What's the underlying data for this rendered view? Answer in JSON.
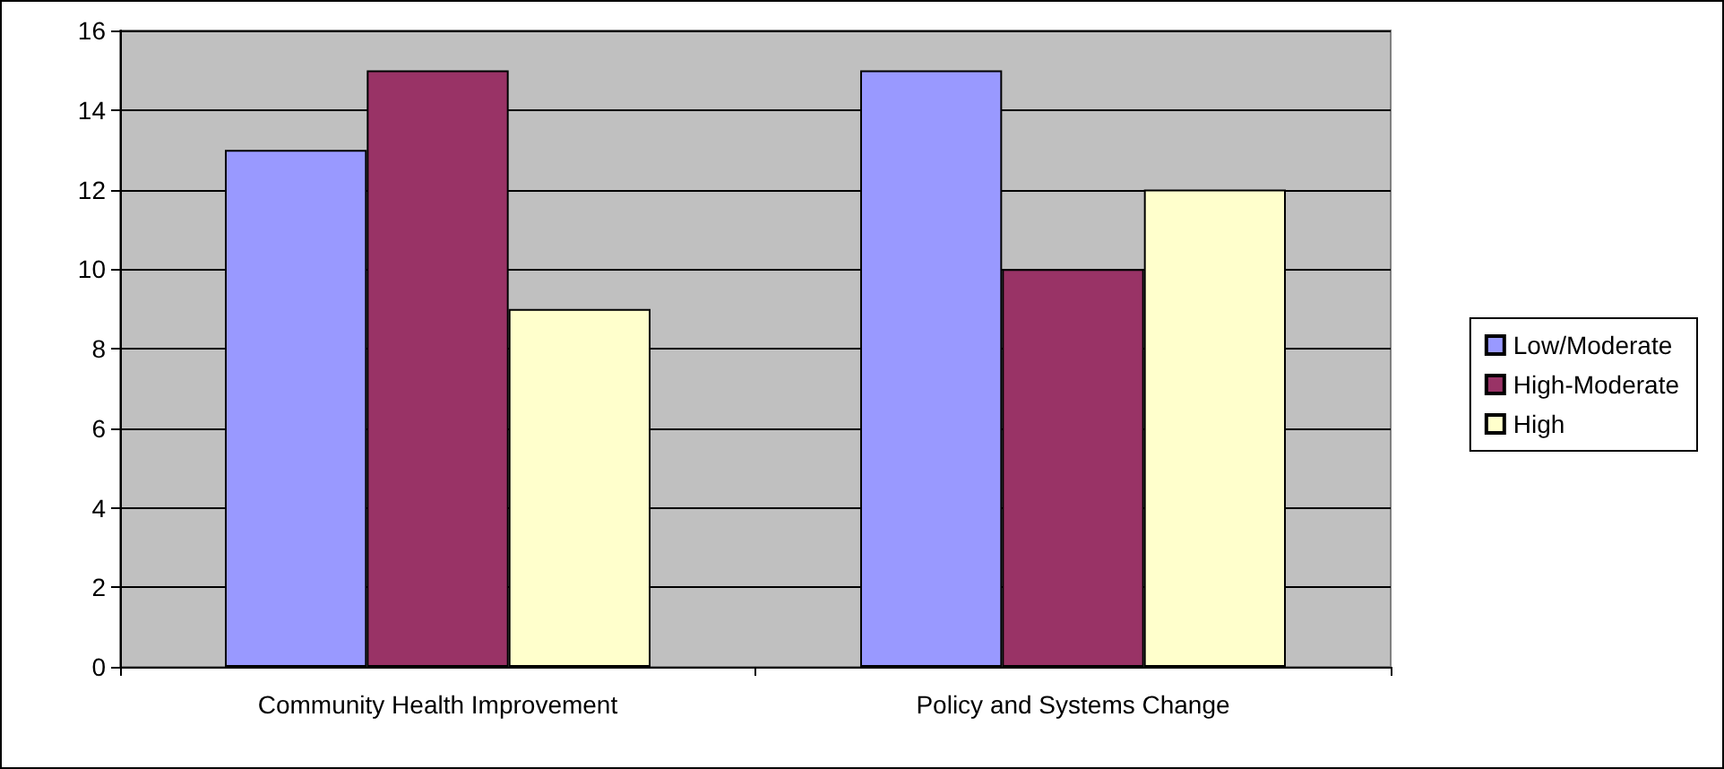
{
  "chart_data": {
    "type": "bar",
    "categories": [
      "Community Health Improvement",
      "Policy and Systems Change"
    ],
    "series": [
      {
        "name": "Low/Moderate",
        "color": "#9999ff",
        "values": [
          13,
          15
        ]
      },
      {
        "name": "High-Moderate",
        "color": "#993366",
        "values": [
          15,
          10
        ]
      },
      {
        "name": "High",
        "color": "#ffffcc",
        "values": [
          9,
          12
        ]
      }
    ],
    "ylim": [
      0,
      16
    ],
    "yticks": [
      0,
      2,
      4,
      6,
      8,
      10,
      12,
      14,
      16
    ],
    "grid": "y",
    "legend": "right"
  }
}
